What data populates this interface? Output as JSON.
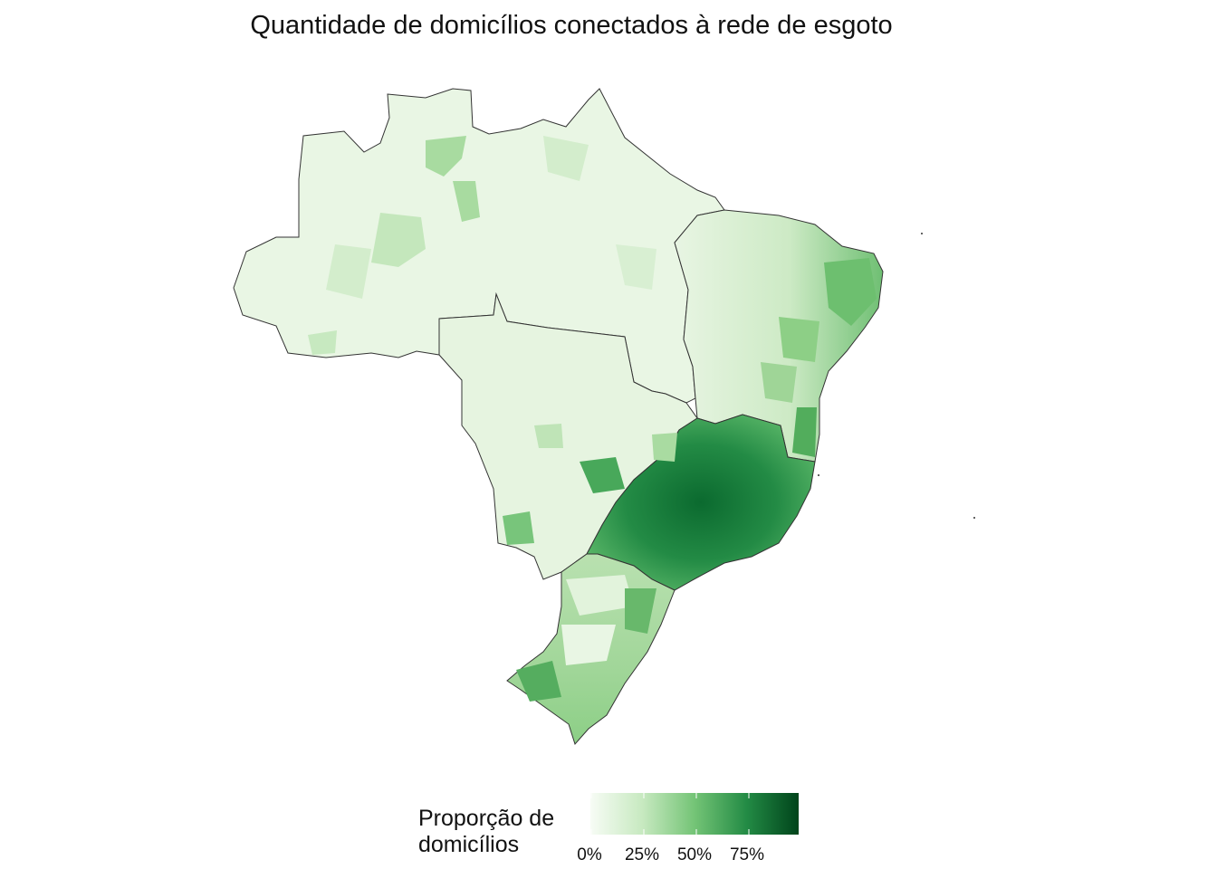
{
  "title": "Quantidade de domicílios conectados à rede de esgoto",
  "legend": {
    "title_line1": "Proporção de",
    "title_line2": "domicílios",
    "ticks": [
      "0%",
      "25%",
      "50%",
      "75%"
    ],
    "gradient": [
      "#f7fcf5",
      "#c7e9c0",
      "#74c476",
      "#238b45",
      "#00441b"
    ]
  },
  "colors": {
    "border": "#333333",
    "lightest": "#edf8e9",
    "light": "#c7e9c0",
    "medium": "#74c476",
    "dark": "#238b45",
    "darkest": "#00441b"
  }
}
